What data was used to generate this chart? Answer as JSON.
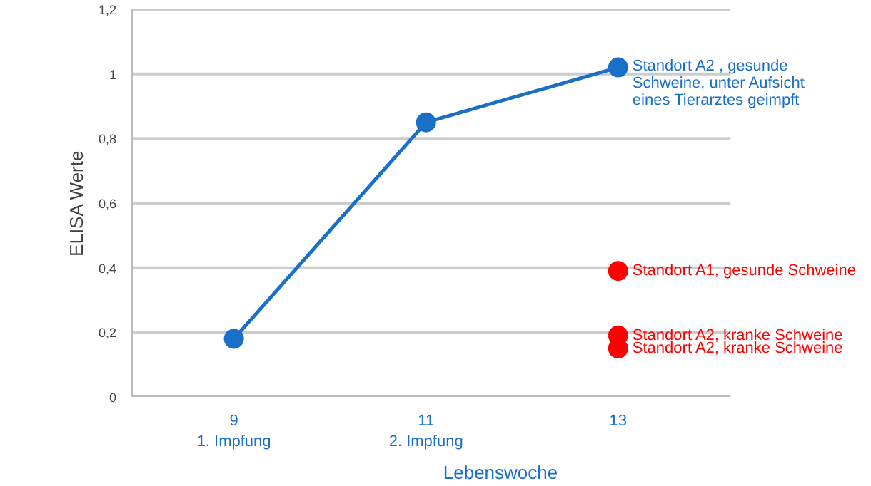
{
  "chart_data": {
    "type": "line",
    "xlabel": "Lebenswoche",
    "ylabel": "ELISA Werte",
    "categories": [
      "9\n1. Impfung",
      "11\n2. Impfung",
      "13"
    ],
    "ylim": [
      0,
      1.2
    ],
    "yticks": [
      0,
      {
        "value": 0.2,
        "label": "0,2"
      },
      {
        "value": 0.4,
        "label": "0,4"
      },
      {
        "value": 0.6,
        "label": "0,6"
      },
      {
        "value": 0.8,
        "label": "0,8"
      },
      {
        "value": 1,
        "label": "1"
      },
      {
        "value": 1.2,
        "label": "1,2"
      }
    ],
    "grid": "y",
    "marker": "circle",
    "line_style": "solid",
    "series": [
      {
        "name": "Standort A2 , gesunde\nSchweine, unter Aufsicht\neines Tierarztes geimpft",
        "color": "#1a6fc9",
        "values": [
          0.18,
          0.85,
          1.02
        ]
      },
      {
        "type": "scatter",
        "name": "Standort A1, gesunde Schweine",
        "color": "#ff0000",
        "x": [
          "13"
        ],
        "values": [
          0.39
        ]
      },
      {
        "type": "scatter",
        "name": "Standort A2, kranke Schweine",
        "color": "#ff0000",
        "x": [
          "13"
        ],
        "values": [
          0.19
        ]
      },
      {
        "type": "scatter",
        "name": "Standort A2, kranke Schweine",
        "color": "#ff0000",
        "x": [
          "13"
        ],
        "values": [
          0.15
        ]
      }
    ]
  }
}
